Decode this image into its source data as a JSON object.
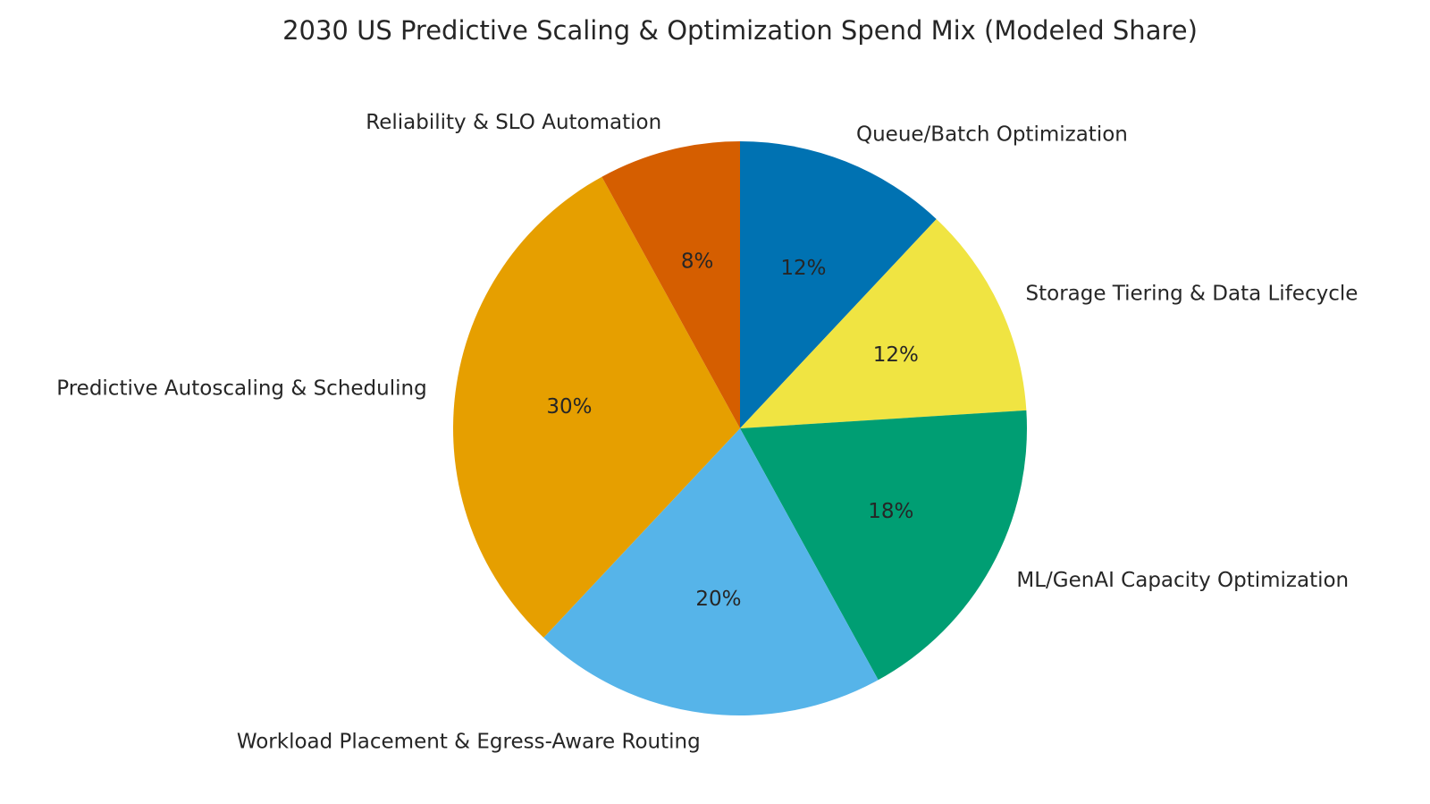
{
  "chart_data": {
    "type": "pie",
    "title": "2030 US Predictive Scaling & Optimization Spend Mix (Modeled Share)",
    "start_angle_deg": 90,
    "direction": "clockwise",
    "slices": [
      {
        "label": "Queue/Batch Optimization",
        "value": 12,
        "pct_label": "12%",
        "color": "#0072B2"
      },
      {
        "label": "Storage Tiering & Data Lifecycle",
        "value": 12,
        "pct_label": "12%",
        "color": "#F0E442"
      },
      {
        "label": "ML/GenAI Capacity Optimization",
        "value": 18,
        "pct_label": "18%",
        "color": "#009E73"
      },
      {
        "label": "Workload Placement & Egress-Aware Routing",
        "value": 20,
        "pct_label": "20%",
        "color": "#56B4E9"
      },
      {
        "label": "Predictive Autoscaling & Scheduling",
        "value": 30,
        "pct_label": "30%",
        "color": "#E69F00"
      },
      {
        "label": "Reliability & SLO Automation",
        "value": 8,
        "pct_label": "8%",
        "color": "#D55E00"
      }
    ]
  }
}
